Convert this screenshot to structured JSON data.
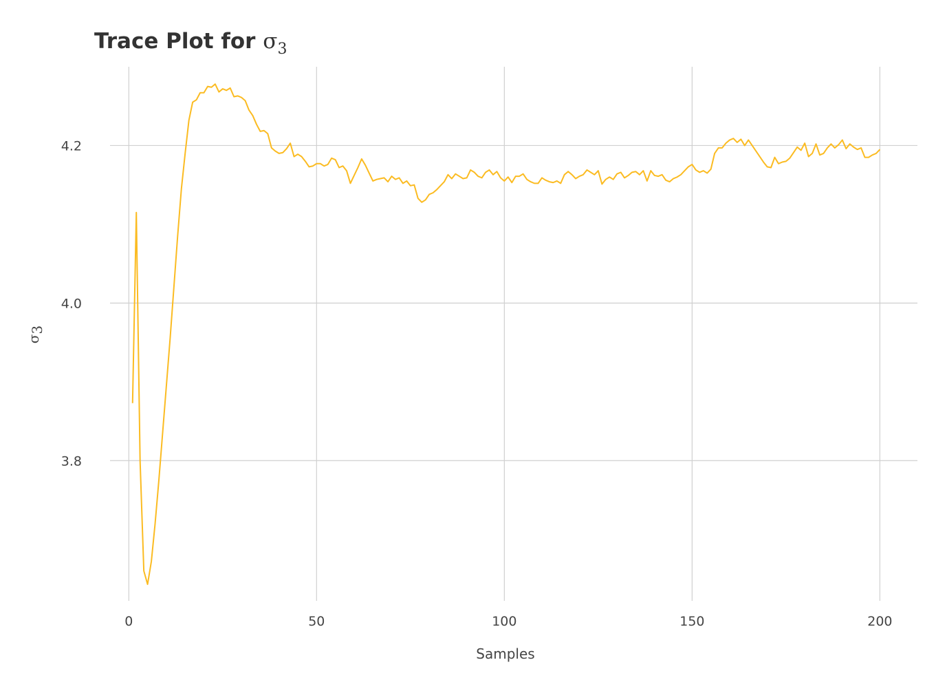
{
  "chart_data": {
    "type": "line",
    "title": {
      "text": "Trace Plot for ",
      "symbol": "σ",
      "subscript": "3"
    },
    "xlabel": "Samples",
    "ylabel": {
      "symbol": "σ",
      "subscript": "3"
    },
    "xlim": [
      -5,
      210
    ],
    "ylim": [
      3.622,
      4.3
    ],
    "x_ticks": [
      0,
      50,
      100,
      150,
      200
    ],
    "x_tick_labels": [
      "0",
      "50",
      "100",
      "150",
      "200"
    ],
    "y_ticks": [
      3.8,
      4.0,
      4.2
    ],
    "y_tick_labels": [
      "3.8",
      "4.0",
      "4.2"
    ],
    "grid": true,
    "legend": "none",
    "series": [
      {
        "color": "#FBBB21",
        "x": [
          1,
          2,
          3,
          4,
          5,
          6,
          7,
          8,
          9,
          10,
          11,
          12,
          13,
          14,
          15,
          16,
          17,
          18,
          19,
          20,
          21,
          22,
          23,
          24,
          25,
          26,
          27,
          28,
          29,
          30,
          31,
          32,
          33,
          34,
          35,
          36,
          37,
          38,
          39,
          40,
          41,
          42,
          43,
          44,
          45,
          46,
          47,
          48,
          49,
          50,
          51,
          52,
          53,
          54,
          55,
          56,
          57,
          58,
          59,
          60,
          61,
          62,
          63,
          64,
          65,
          66,
          67,
          68,
          69,
          70,
          71,
          72,
          73,
          74,
          75,
          76,
          77,
          78,
          79,
          80,
          81,
          82,
          83,
          84,
          85,
          86,
          87,
          88,
          89,
          90,
          91,
          92,
          93,
          94,
          95,
          96,
          97,
          98,
          99,
          100,
          101,
          102,
          103,
          104,
          105,
          106,
          107,
          108,
          109,
          110,
          111,
          112,
          113,
          114,
          115,
          116,
          117,
          118,
          119,
          120,
          121,
          122,
          123,
          124,
          125,
          126,
          127,
          128,
          129,
          130,
          131,
          132,
          133,
          134,
          135,
          136,
          137,
          138,
          139,
          140,
          141,
          142,
          143,
          144,
          145,
          146,
          147,
          148,
          149,
          150,
          151,
          152,
          153,
          154,
          155,
          156,
          157,
          158,
          159,
          160,
          161,
          162,
          163,
          164,
          165,
          166,
          167,
          168,
          169,
          170,
          171,
          172,
          173,
          174,
          175,
          176,
          177,
          178,
          179,
          180,
          181,
          182,
          183,
          184,
          185,
          186,
          187,
          188,
          189,
          190,
          191,
          192,
          193,
          194,
          195,
          196,
          197,
          198,
          199,
          200
        ],
        "y": [
          3.873,
          4.115,
          3.8,
          3.66,
          3.643,
          3.672,
          3.72,
          3.775,
          3.835,
          3.895,
          3.955,
          4.02,
          4.085,
          4.145,
          4.19,
          4.232,
          4.255,
          4.258,
          4.267,
          4.267,
          4.275,
          4.274,
          4.278,
          4.268,
          4.272,
          4.27,
          4.273,
          4.262,
          4.263,
          4.261,
          4.257,
          4.245,
          4.238,
          4.227,
          4.218,
          4.219,
          4.215,
          4.197,
          4.193,
          4.19,
          4.191,
          4.196,
          4.203,
          4.186,
          4.189,
          4.186,
          4.18,
          4.173,
          4.174,
          4.177,
          4.177,
          4.174,
          4.176,
          4.184,
          4.182,
          4.172,
          4.174,
          4.168,
          4.152,
          4.162,
          4.172,
          4.183,
          4.175,
          4.165,
          4.155,
          4.157,
          4.158,
          4.159,
          4.154,
          4.161,
          4.157,
          4.159,
          4.152,
          4.155,
          4.149,
          4.15,
          4.133,
          4.128,
          4.131,
          4.138,
          4.14,
          4.144,
          4.149,
          4.154,
          4.163,
          4.158,
          4.164,
          4.161,
          4.158,
          4.159,
          4.169,
          4.166,
          4.161,
          4.159,
          4.166,
          4.169,
          4.163,
          4.167,
          4.159,
          4.155,
          4.16,
          4.153,
          4.161,
          4.161,
          4.164,
          4.157,
          4.154,
          4.152,
          4.152,
          4.159,
          4.156,
          4.154,
          4.153,
          4.155,
          4.152,
          4.163,
          4.167,
          4.163,
          4.158,
          4.161,
          4.163,
          4.169,
          4.166,
          4.163,
          4.168,
          4.151,
          4.157,
          4.16,
          4.157,
          4.164,
          4.166,
          4.159,
          4.162,
          4.166,
          4.167,
          4.163,
          4.168,
          4.155,
          4.168,
          4.162,
          4.161,
          4.163,
          4.156,
          4.154,
          4.158,
          4.16,
          4.163,
          4.168,
          4.173,
          4.176,
          4.169,
          4.166,
          4.168,
          4.165,
          4.17,
          4.19,
          4.197,
          4.197,
          4.203,
          4.207,
          4.209,
          4.204,
          4.208,
          4.2,
          4.207,
          4.2,
          4.193,
          4.186,
          4.179,
          4.173,
          4.172,
          4.185,
          4.177,
          4.179,
          4.18,
          4.184,
          4.191,
          4.198,
          4.194,
          4.203,
          4.186,
          4.19,
          4.202,
          4.188,
          4.19,
          4.197,
          4.202,
          4.197,
          4.201,
          4.207,
          4.196,
          4.202,
          4.198,
          4.195,
          4.197,
          4.185,
          4.185,
          4.188,
          4.19,
          4.195
        ]
      }
    ]
  }
}
